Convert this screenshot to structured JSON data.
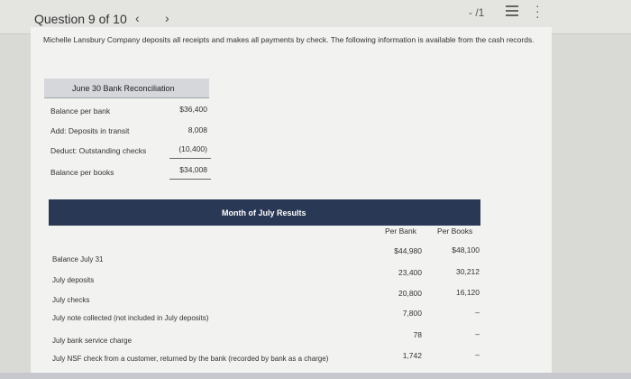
{
  "header": {
    "question": "Question 9 of 10",
    "prev_icon": "‹",
    "next_icon": "›",
    "score": "- /1"
  },
  "intro": "Michelle Lansbury Company deposits all receipts and makes all payments by check. The following information is available from the cash records.",
  "reconciliation": {
    "title": "June 30 Bank Reconciliation",
    "rows": [
      {
        "label": "Balance per bank",
        "value": "$36,400"
      },
      {
        "label": "Add: Deposits in transit",
        "value": "8,008"
      },
      {
        "label": "Deduct: Outstanding checks",
        "value": "(10,400)"
      },
      {
        "label": "Balance per books",
        "value": "$34,008"
      }
    ]
  },
  "july": {
    "title": "Month of July Results",
    "col_bank": "Per Bank",
    "col_books": "Per Books",
    "rows": [
      {
        "label": "Balance July 31",
        "bank": "$44,980",
        "books": "$48,100"
      },
      {
        "label": "July deposits",
        "bank": "23,400",
        "books": "30,212"
      },
      {
        "label": "July checks",
        "bank": "20,800",
        "books": "16,120"
      },
      {
        "label": "July note collected (not included in July deposits)",
        "bank": "7,800",
        "books": "–"
      },
      {
        "label": "July bank service charge",
        "bank": "78",
        "books": "–"
      },
      {
        "label": "July NSF check from a customer, returned by the bank (recorded by bank as a charge)",
        "bank": "1,742",
        "books": "–"
      }
    ]
  },
  "colors": {
    "bar": "#293854",
    "recon_header": "#d5d7db"
  }
}
